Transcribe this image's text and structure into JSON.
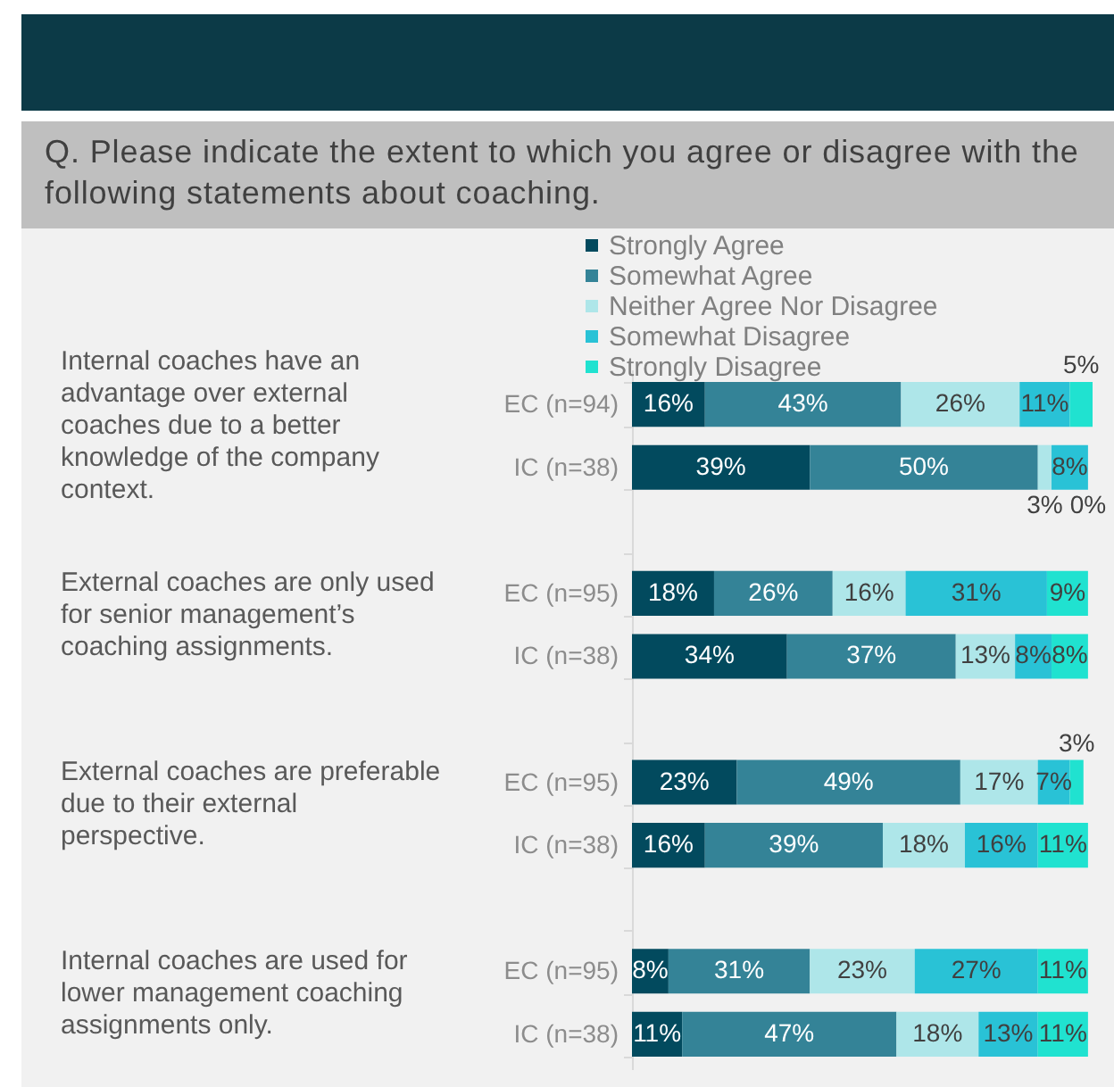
{
  "chart_data": {
    "type": "bar",
    "orientation": "horizontal",
    "stacked": true,
    "title": "Q. Please indicate the extent to which you agree or disagree with the following statements about coaching.",
    "categories": [
      "EC (n=94)",
      "IC (n=38)",
      "EC (n=95)",
      "IC (n=38)",
      "EC (n=95)",
      "IC (n=38)",
      "EC (n=95)",
      "IC (n=38)"
    ],
    "annotations": [
      "Internal coaches have an advantage over external coaches due to a better knowledge of the company context.",
      "External coaches are only used for senior management’s coaching assignments.",
      "External coaches are preferable due to their external perspective.",
      "Internal coaches are used for lower management coaching assignments only."
    ],
    "series": [
      {
        "name": "Strongly Agree",
        "color": "#024a5e",
        "values": [
          16,
          39,
          18,
          34,
          23,
          16,
          8,
          11
        ],
        "value_labels": [
          "16%",
          "39%",
          "18%",
          "34%",
          "23%",
          "16%",
          "8%",
          "11%"
        ]
      },
      {
        "name": "Somewhat Agree",
        "color": "#348397",
        "values": [
          43,
          50,
          26,
          37,
          49,
          39,
          31,
          47
        ],
        "value_labels": [
          "43%",
          "50%",
          "26%",
          "37%",
          "49%",
          "39%",
          "31%",
          "47%"
        ]
      },
      {
        "name": "Neither Agree Nor Disagree",
        "color": "#aee6e9",
        "values": [
          26,
          3,
          16,
          13,
          17,
          18,
          23,
          18
        ],
        "value_labels": [
          "26%",
          "3%",
          "16%",
          "13%",
          "17%",
          "18%",
          "23%",
          "18%"
        ]
      },
      {
        "name": "Somewhat Disagree",
        "color": "#29c2d6",
        "values": [
          11,
          8,
          31,
          8,
          7,
          16,
          27,
          13
        ],
        "value_labels": [
          "11%",
          "8%",
          "31%",
          "8%",
          "7%",
          "16%",
          "27%",
          "13%"
        ]
      },
      {
        "name": "Strongly Disagree",
        "color": "#20e2d0",
        "values": [
          5,
          0,
          9,
          8,
          3,
          11,
          11,
          11
        ],
        "value_labels": [
          "5%",
          "0%",
          "9%",
          "8%",
          "3%",
          "11%",
          "11%",
          "11%"
        ]
      }
    ],
    "xlim": [
      0,
      101
    ],
    "legend": "top",
    "tick_labels": "y"
  }
}
